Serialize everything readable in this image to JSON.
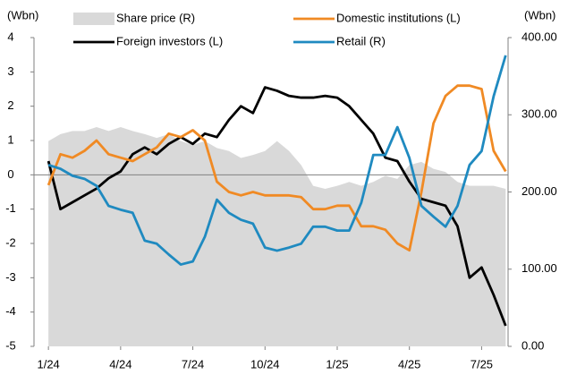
{
  "chart_data": {
    "type": "line",
    "y_label": "(Wbn)",
    "y2_label": "(Wbn)",
    "x": [
      0,
      0.5,
      1,
      1.5,
      2,
      2.5,
      3,
      3.5,
      4,
      4.5,
      5,
      5.5,
      6,
      6.5,
      7,
      7.5,
      8,
      8.5,
      9,
      9.5,
      10,
      10.5,
      11,
      11.5,
      12,
      12.5,
      13,
      13.5,
      14,
      14.5,
      15,
      15.5,
      16,
      16.5,
      17,
      17.5,
      18,
      18.5,
      19
    ],
    "xlim": [
      -0.6,
      19.1
    ],
    "xticks": [
      {
        "value": 0,
        "label": "1/24"
      },
      {
        "value": 3,
        "label": "4/24"
      },
      {
        "value": 6,
        "label": "7/24"
      },
      {
        "value": 9,
        "label": "10/24"
      },
      {
        "value": 12,
        "label": "1/25"
      },
      {
        "value": 15,
        "label": "4/25"
      },
      {
        "value": 18,
        "label": "7/25"
      }
    ],
    "ylim": [
      -5,
      4
    ],
    "yticks": [
      -5,
      -4,
      -3,
      -2,
      -1,
      0,
      1,
      2,
      3,
      4
    ],
    "y2lim": [
      0,
      400
    ],
    "y2ticks": [
      {
        "value": 0,
        "label": "0.00"
      },
      {
        "value": 100,
        "label": "100.00"
      },
      {
        "value": 200,
        "label": "200.00"
      },
      {
        "value": 300,
        "label": "300.00"
      },
      {
        "value": 400,
        "label": "400.00"
      }
    ],
    "series": [
      {
        "name": "Share price (R)",
        "kind": "area",
        "axis": "y2",
        "color": "#d9d9d9",
        "values": [
          266,
          275,
          279,
          279,
          284,
          279,
          284,
          279,
          275,
          270,
          275,
          266,
          261,
          266,
          257,
          253,
          244,
          248,
          253,
          266,
          253,
          235,
          208,
          204,
          208,
          213,
          208,
          213,
          221,
          217,
          235,
          239,
          230,
          226,
          213,
          208,
          208,
          208,
          204
        ]
      },
      {
        "name": "Foreign investors (L)",
        "color": "#000000",
        "values": [
          0.4,
          -1.0,
          -0.8,
          -0.6,
          -0.4,
          -0.1,
          0.1,
          0.6,
          0.8,
          0.6,
          0.9,
          1.1,
          0.9,
          1.2,
          1.1,
          1.6,
          2.0,
          1.8,
          2.55,
          2.45,
          2.3,
          2.25,
          2.25,
          2.3,
          2.25,
          2.0,
          1.6,
          1.2,
          0.5,
          0.4,
          -0.2,
          -0.7,
          -0.8,
          -0.9,
          -1.5,
          -3.0,
          -2.7,
          -3.5,
          -4.4
        ]
      },
      {
        "name": "Domestic institutions (L)",
        "color": "#f08a24",
        "values": [
          -0.3,
          0.6,
          0.5,
          0.7,
          1.0,
          0.6,
          0.5,
          0.4,
          0.6,
          0.8,
          1.2,
          1.1,
          1.3,
          1.0,
          -0.2,
          -0.5,
          -0.6,
          -0.5,
          -0.6,
          -0.6,
          -0.6,
          -0.65,
          -1.0,
          -1.0,
          -0.9,
          -0.9,
          -1.5,
          -1.5,
          -1.6,
          -2.0,
          -2.2,
          -0.5,
          1.5,
          2.3,
          2.6,
          2.6,
          2.5,
          0.7,
          0.1
        ]
      },
      {
        "name": "Retail (R)",
        "axis": "y2",
        "color": "#1f8ac0",
        "values": [
          235,
          230,
          221,
          217,
          208,
          182,
          177,
          173,
          137,
          133,
          119,
          106,
          110,
          142,
          190,
          173,
          164,
          159,
          128,
          124,
          128,
          133,
          155,
          155,
          150,
          150,
          186,
          248,
          248,
          284,
          244,
          182,
          168,
          155,
          182,
          235,
          253,
          324,
          377
        ]
      }
    ]
  }
}
